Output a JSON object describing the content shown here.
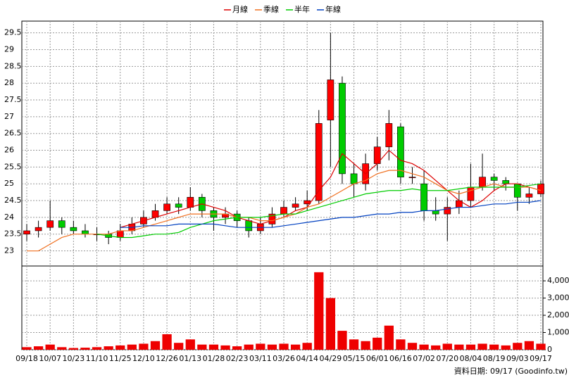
{
  "chart_data": [
    {
      "type": "candlestick",
      "open": [
        23.5,
        23.6,
        23.7,
        23.9,
        23.7,
        23.6,
        23.5,
        23.5,
        23.4,
        23.6,
        23.8,
        24.0,
        24.2,
        24.4,
        24.3,
        24.6,
        24.2,
        24.0,
        24.1,
        23.9,
        23.6,
        23.8,
        24.1,
        24.3,
        24.4,
        24.5,
        26.9,
        28.0,
        25.3,
        25.0,
        25.6,
        26.1,
        26.7,
        25.2,
        25.0,
        24.2,
        24.1,
        24.3,
        24.5,
        24.9,
        25.2,
        25.1,
        25.0,
        24.6,
        24.7
      ],
      "high": [
        23.8,
        23.9,
        24.5,
        24.0,
        23.9,
        23.8,
        23.7,
        23.6,
        23.8,
        24.0,
        24.2,
        24.4,
        24.6,
        24.6,
        24.9,
        24.7,
        24.3,
        24.3,
        24.2,
        24.0,
        24.0,
        24.3,
        24.5,
        24.6,
        24.8,
        27.2,
        29.5,
        28.2,
        25.6,
        25.9,
        26.4,
        27.2,
        26.8,
        25.5,
        25.4,
        24.6,
        24.6,
        24.8,
        25.6,
        25.9,
        25.3,
        25.2,
        25.0,
        24.9,
        25.1
      ],
      "low": [
        23.3,
        23.4,
        23.6,
        23.5,
        23.5,
        23.4,
        23.3,
        23.2,
        23.3,
        23.5,
        23.7,
        23.9,
        24.1,
        24.1,
        24.2,
        24.0,
        23.6,
        23.8,
        23.7,
        23.4,
        23.5,
        23.7,
        24.0,
        24.2,
        24.2,
        24.4,
        25.5,
        25.0,
        24.6,
        24.8,
        25.4,
        25.7,
        25.0,
        25.0,
        23.9,
        23.9,
        23.3,
        24.1,
        24.3,
        24.8,
        24.8,
        24.8,
        24.2,
        24.4,
        24.6
      ],
      "close": [
        23.6,
        23.7,
        23.9,
        23.7,
        23.6,
        23.5,
        23.5,
        23.4,
        23.6,
        23.8,
        24.0,
        24.2,
        24.4,
        24.3,
        24.6,
        24.2,
        24.0,
        24.1,
        23.9,
        23.6,
        23.8,
        24.1,
        24.3,
        24.4,
        24.5,
        26.8,
        28.1,
        25.3,
        25.0,
        25.6,
        26.1,
        26.8,
        25.2,
        25.2,
        24.2,
        24.1,
        24.3,
        24.5,
        24.9,
        25.2,
        25.1,
        25.0,
        24.6,
        24.7,
        25.0
      ],
      "up_color": "#ff0000",
      "down_color": "#00cc00",
      "series": [
        {
          "name": "月線",
          "color": "#dd0000",
          "values": [
            null,
            null,
            null,
            null,
            null,
            null,
            null,
            null,
            23.7,
            23.8,
            23.9,
            24.0,
            24.1,
            24.2,
            24.3,
            24.4,
            24.3,
            24.2,
            24.0,
            23.9,
            23.8,
            23.9,
            24.0,
            24.2,
            24.3,
            24.8,
            25.2,
            25.9,
            25.6,
            25.3,
            25.6,
            26.0,
            25.7,
            25.6,
            25.4,
            25.1,
            24.8,
            24.5,
            24.3,
            24.5,
            24.8,
            25.0,
            25.0,
            24.9,
            24.8
          ]
        },
        {
          "name": "季線",
          "color": "#f07020",
          "values": [
            23.0,
            23.0,
            23.2,
            23.4,
            23.5,
            23.5,
            23.5,
            23.5,
            23.6,
            23.6,
            23.7,
            23.8,
            23.9,
            24.0,
            24.1,
            24.1,
            24.1,
            24.1,
            24.0,
            24.0,
            23.9,
            23.9,
            24.0,
            24.1,
            24.3,
            24.4,
            24.6,
            24.8,
            25.0,
            25.1,
            25.3,
            25.4,
            25.4,
            25.3,
            25.2,
            25.0,
            24.8,
            24.7,
            24.8,
            24.9,
            25.0,
            24.9,
            24.9,
            24.9,
            24.8
          ]
        },
        {
          "name": "半年",
          "color": "#00cc00",
          "values": [
            null,
            null,
            null,
            null,
            null,
            null,
            23.5,
            23.45,
            23.4,
            23.4,
            23.45,
            23.5,
            23.5,
            23.55,
            23.7,
            23.8,
            23.9,
            23.95,
            24.0,
            24.0,
            24.0,
            24.05,
            24.1,
            24.1,
            24.2,
            24.3,
            24.4,
            24.5,
            24.6,
            24.7,
            24.75,
            24.8,
            24.8,
            24.85,
            24.8,
            24.8,
            24.8,
            24.85,
            24.9,
            24.9,
            24.9,
            24.9,
            24.9,
            24.95,
            25.0
          ]
        },
        {
          "name": "年線",
          "color": "#0040c0",
          "values": [
            null,
            null,
            null,
            null,
            null,
            null,
            null,
            null,
            23.7,
            23.7,
            23.75,
            23.75,
            23.75,
            23.8,
            23.8,
            23.8,
            23.8,
            23.75,
            23.7,
            23.7,
            23.7,
            23.7,
            23.75,
            23.8,
            23.85,
            23.9,
            23.95,
            24.0,
            24.0,
            24.05,
            24.1,
            24.1,
            24.15,
            24.15,
            24.2,
            24.2,
            24.25,
            24.3,
            24.3,
            24.35,
            24.4,
            24.4,
            24.45,
            24.45,
            24.5
          ]
        }
      ],
      "ylim": [
        22.55,
        29.85
      ],
      "yticks": [
        23,
        23.5,
        24,
        24.5,
        25,
        25.5,
        26,
        26.5,
        27,
        27.5,
        28,
        28.5,
        29,
        29.5
      ],
      "grid": true,
      "legend": "top"
    },
    {
      "type": "bar",
      "categories": [
        "09/18",
        null,
        "10/07",
        null,
        "10/23",
        null,
        "11/10",
        null,
        "11/25",
        null,
        "12/10",
        null,
        "12/26",
        null,
        "01/13",
        null,
        "01/28",
        null,
        "02/23",
        null,
        "03/11",
        null,
        "03/26",
        null,
        "04/14",
        null,
        "04/29",
        null,
        "05/15",
        null,
        "06/01",
        null,
        "06/16",
        null,
        "07/02",
        null,
        "07/20",
        null,
        "08/04",
        null,
        "08/19",
        null,
        "09/03",
        null,
        "09/17"
      ],
      "values": [
        150,
        200,
        300,
        150,
        100,
        120,
        150,
        200,
        250,
        300,
        350,
        500,
        900,
        400,
        600,
        300,
        300,
        250,
        200,
        300,
        350,
        300,
        350,
        300,
        400,
        4500,
        3000,
        1100,
        600,
        500,
        700,
        1400,
        600,
        400,
        300,
        250,
        350,
        300,
        300,
        350,
        300,
        250,
        400,
        500,
        350
      ],
      "color": "#ee0000",
      "ylim": [
        0,
        4780
      ],
      "yticks": [
        0,
        {
          "value": 1000,
          "label": "1,000"
        },
        {
          "value": 2000,
          "label": "2,000"
        },
        {
          "value": 3000,
          "label": "3,000"
        },
        {
          "value": 4000,
          "label": "4,000"
        }
      ],
      "grid": true,
      "source": "資料日期: 09/17  (Goodinfo.tw)"
    }
  ]
}
